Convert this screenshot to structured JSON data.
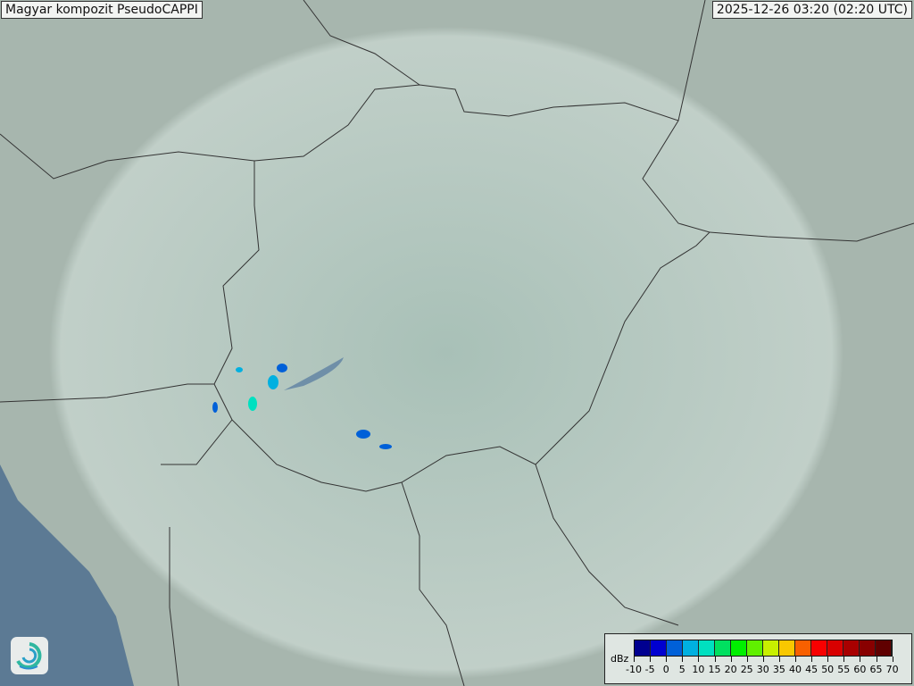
{
  "header": {
    "title": "Magyar kompozit  PseudoCAPPI",
    "timestamp": "2025-12-26 03:20 (02:20 UTC)"
  },
  "legend": {
    "unit": "dBz",
    "ticks": [
      "-10",
      "-5",
      "0",
      "5",
      "10",
      "15",
      "20",
      "25",
      "30",
      "35",
      "40",
      "45",
      "50",
      "55",
      "60",
      "65",
      "70"
    ],
    "colors": [
      "#000090",
      "#0000d0",
      "#0060d8",
      "#00b0e0",
      "#00e0c0",
      "#00e060",
      "#00f000",
      "#60f000",
      "#c8f000",
      "#f8c800",
      "#f86000",
      "#f80000",
      "#d80000",
      "#a80000",
      "#880000",
      "#600000"
    ]
  },
  "map": {
    "radar_coverage_color": "#d8e6e0",
    "sea_color": "#5c7a94",
    "logo": "hungarian-meteorological-service-logo"
  }
}
